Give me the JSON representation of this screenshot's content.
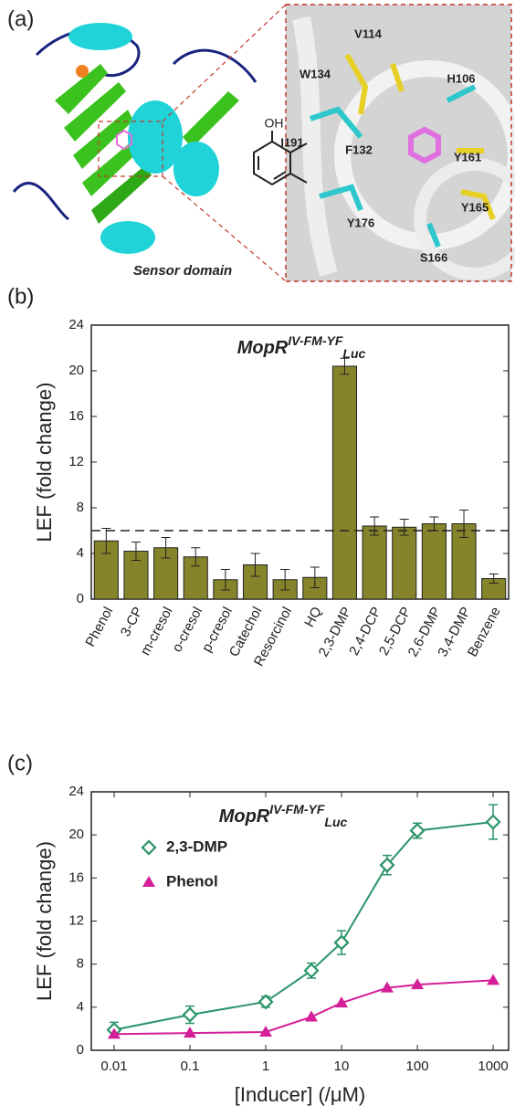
{
  "panel_a": {
    "label": "(a)",
    "caption": "Sensor domain",
    "residues": [
      "V114",
      "W134",
      "H106",
      "I191",
      "F132",
      "Y161",
      "Y176",
      "Y165",
      "S166"
    ]
  },
  "chart_data": [
    {
      "type": "bar",
      "panel_label": "(b)",
      "title": "MopR",
      "title_superscript": "IV-FM-YF",
      "title_subscript": "Luc",
      "y_label": "LEF (fold change)",
      "categories": [
        "Phenol",
        "3-CP",
        "m-cresol",
        "o-cresol",
        "p-cresol",
        "Catechol",
        "Resorcinol",
        "HQ",
        "2,3-DMP",
        "2,4-DCP",
        "2,5-DCP",
        "2,6-DMP",
        "3,4-DMP",
        "Benzene"
      ],
      "values": [
        5.1,
        4.2,
        4.5,
        3.7,
        1.7,
        3.0,
        1.7,
        1.9,
        20.4,
        6.4,
        6.3,
        6.6,
        6.6,
        1.8
      ],
      "errors": [
        1.1,
        0.8,
        0.9,
        0.8,
        0.9,
        1.0,
        0.9,
        0.9,
        0.7,
        0.8,
        0.7,
        0.6,
        1.2,
        0.4
      ],
      "color": "#86842b",
      "threshold": 6,
      "ylim": [
        0,
        24
      ],
      "yticks": [
        0,
        4,
        8,
        12,
        16,
        20,
        24
      ]
    },
    {
      "type": "line",
      "panel_label": "(c)",
      "title": "MopR",
      "title_superscript": "IV-FM-YF",
      "title_subscript": "Luc",
      "x_label": "[Inducer] (/μM)",
      "y_label": "LEF (fold change)",
      "xscale": "log",
      "x": [
        0.01,
        0.1,
        1,
        4,
        10,
        40,
        100,
        1000
      ],
      "series": [
        {
          "name": "2,3-DMP",
          "color": "#2b9468",
          "marker": "diamond",
          "values": [
            1.9,
            3.3,
            4.5,
            7.4,
            10.0,
            17.2,
            20.4,
            21.2
          ],
          "errors": [
            0.7,
            0.8,
            0.5,
            0.7,
            1.1,
            0.9,
            0.7,
            1.6
          ]
        },
        {
          "name": "Phenol",
          "color": "#d41f98",
          "marker": "triangle",
          "values": [
            1.5,
            1.6,
            1.7,
            3.1,
            4.4,
            5.8,
            6.1,
            6.5
          ]
        }
      ],
      "xlim": [
        0.005,
        1600
      ],
      "xticks": [
        0.01,
        0.1,
        1,
        10,
        100,
        1000
      ],
      "ylim": [
        0,
        24
      ],
      "yticks": [
        0,
        4,
        8,
        12,
        16,
        20,
        24
      ]
    }
  ]
}
